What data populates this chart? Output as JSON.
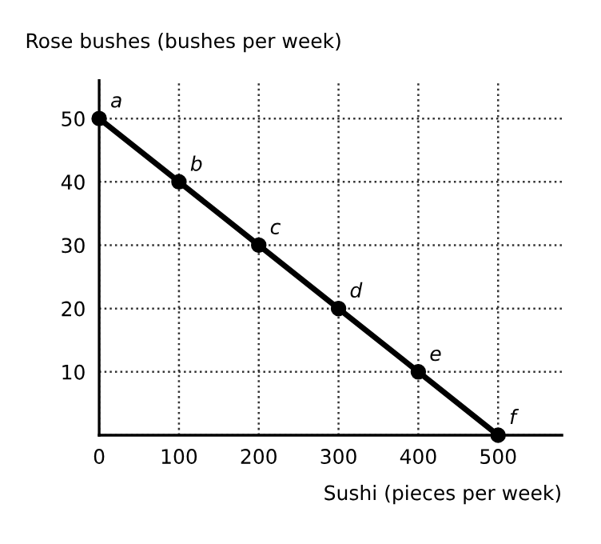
{
  "chart_data": {
    "type": "line",
    "ylabel": "Rose bushes (bushes per week)",
    "xlabel": "Sushi (pieces per week)",
    "x": [
      0,
      100,
      200,
      300,
      400,
      500
    ],
    "series": [
      {
        "color": "#000000",
        "values": [
          50,
          40,
          30,
          20,
          10,
          0
        ]
      }
    ],
    "marker": "circle",
    "line_style": "solid",
    "grid": true,
    "xlim": [
      0,
      580
    ],
    "ylim": [
      0,
      56
    ],
    "xticks": [
      0,
      100,
      200,
      300,
      400,
      500
    ],
    "yticks": [
      {
        "value": 0,
        "label": null
      },
      10,
      20,
      30,
      40,
      50
    ],
    "annotations": [
      {
        "text": "a",
        "x": 0,
        "y": 50
      },
      {
        "text": "b",
        "x": 100,
        "y": 40
      },
      {
        "text": "c",
        "x": 200,
        "y": 30
      },
      {
        "text": "d",
        "x": 300,
        "y": 20
      },
      {
        "text": "e",
        "x": 400,
        "y": 10
      },
      {
        "text": "f",
        "x": 500,
        "y": 0
      }
    ]
  }
}
